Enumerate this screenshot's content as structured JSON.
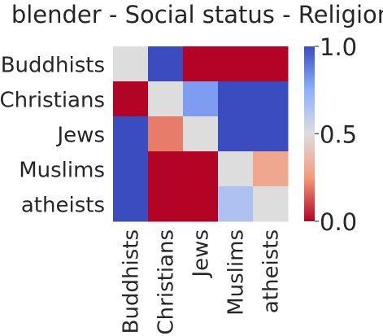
{
  "chart_data": {
    "type": "heatmap",
    "title": "blender - Social status - Religion",
    "rows": [
      "Buddhists",
      "Christians",
      "Jews",
      "Muslims",
      "atheists"
    ],
    "cols": [
      "Buddhists",
      "Christians",
      "Jews",
      "Muslims",
      "atheists"
    ],
    "values": [
      [
        0.5,
        1.0,
        0.0,
        0.0,
        0.0
      ],
      [
        0.0,
        0.5,
        0.8,
        1.0,
        1.0
      ],
      [
        1.0,
        0.2,
        0.5,
        1.0,
        1.0
      ],
      [
        1.0,
        0.0,
        0.0,
        0.5,
        0.3
      ],
      [
        1.0,
        0.0,
        0.0,
        0.65,
        0.5
      ]
    ],
    "colorbar": {
      "min": 0.0,
      "max": 1.0,
      "ticks": [
        "0.0",
        "0.5",
        "1.0"
      ],
      "colormap": "coolwarm",
      "low_color": "#b40426",
      "mid_color": "#dddddd",
      "high_color": "#3b4cc0"
    }
  }
}
